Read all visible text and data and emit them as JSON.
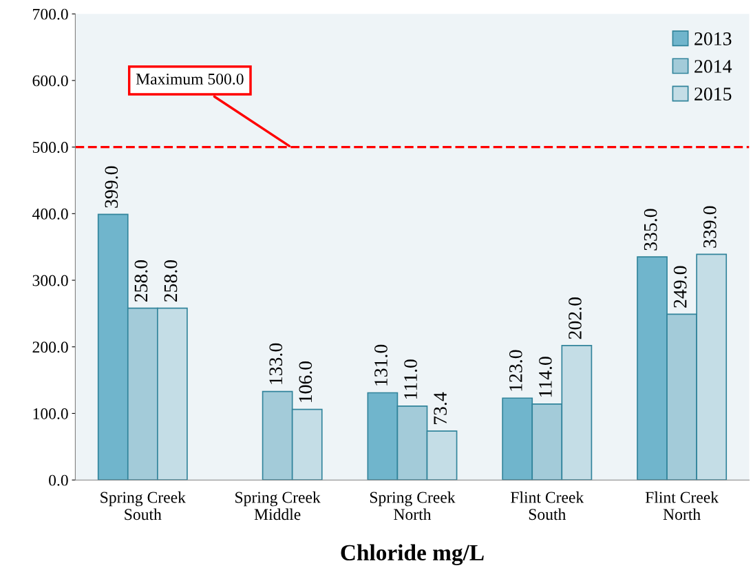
{
  "chart_data": {
    "type": "bar",
    "xlabel": "Chloride mg/L",
    "categories": [
      "Spring Creek\nSouth",
      "Spring Creek\nMiddle",
      "Spring Creek\nNorth",
      "Flint Creek\nSouth",
      "Flint Creek\nNorth"
    ],
    "series": [
      {
        "name": "2013",
        "color": "#70b5cc",
        "values": [
          399.0,
          null,
          131.0,
          123.0,
          335.0
        ],
        "value_labels": [
          "399.0",
          null,
          "131.0",
          "123.0",
          "335.0"
        ]
      },
      {
        "name": "2014",
        "color": "#a3cbd9",
        "values": [
          258.0,
          133.0,
          111.0,
          114.0,
          249.0
        ],
        "value_labels": [
          "258.0",
          "133.0",
          "111.0",
          "114.0",
          "249.0"
        ]
      },
      {
        "name": "2015",
        "color": "#c4dde6",
        "values": [
          258.0,
          106.0,
          73.4,
          202.0,
          339.0
        ],
        "value_labels": [
          "258.0",
          "106.0",
          "73.4",
          "202.0",
          "339.0"
        ]
      }
    ],
    "ylim": [
      0,
      700
    ],
    "yticks": [
      {
        "value": 0,
        "label": "0.0"
      },
      {
        "value": 100,
        "label": "100.0"
      },
      {
        "value": 200,
        "label": "200.0"
      },
      {
        "value": 300,
        "label": "300.0"
      },
      {
        "value": 400,
        "label": "400.0"
      },
      {
        "value": 500,
        "label": "500.0"
      },
      {
        "value": 600,
        "label": "600.0"
      },
      {
        "value": 700,
        "label": "700.0"
      }
    ],
    "ref_lines": [
      {
        "axis": "y",
        "value": 500,
        "label": "Maximum 500.0",
        "color": "#ff0000",
        "line_style": "dashed"
      }
    ],
    "legend": "top right",
    "grid": false
  }
}
